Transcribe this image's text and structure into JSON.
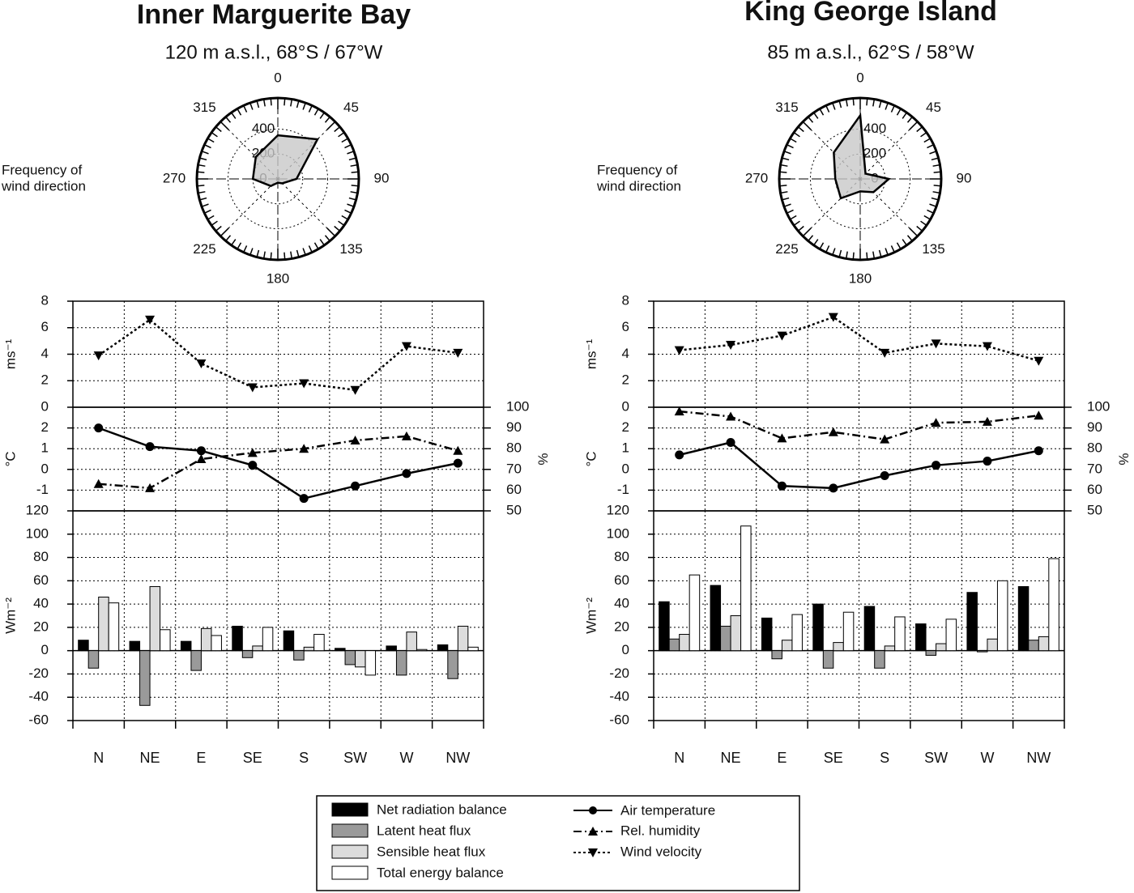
{
  "chart_data": [
    {
      "type": "radar",
      "title": "Inner Marguerite Bay",
      "subtitle": "120 m a.s.l., 68°S / 67°W",
      "label": [
        "Frequency of",
        "wind direction"
      ],
      "angles": [
        0,
        45,
        90,
        135,
        180,
        225,
        270,
        315
      ],
      "rlim": [
        0,
        650
      ],
      "rticks": [
        0,
        200,
        400
      ],
      "values": [
        350,
        450,
        150,
        50,
        30,
        80,
        200,
        250
      ],
      "color": "#c8c8c8"
    },
    {
      "type": "line",
      "ylabel": "ms⁻¹",
      "ylim": [
        0,
        8
      ],
      "yticks": [
        0,
        2,
        4,
        6,
        8
      ],
      "grid": true,
      "series": [
        {
          "name": "Wind velocity",
          "color": "#000000",
          "marker": "triangle-down",
          "line_style": "dotted",
          "values": [
            3.9,
            6.6,
            3.3,
            1.5,
            1.8,
            1.3,
            4.6,
            4.1
          ]
        }
      ]
    },
    {
      "type": "line",
      "ylabel": "°C",
      "y2label": "%",
      "ylim": [
        -2,
        3
      ],
      "yticks": [
        -1,
        0,
        1,
        2
      ],
      "y2lim": [
        50,
        100
      ],
      "y2ticks": [
        50,
        60,
        70,
        80,
        90,
        100
      ],
      "grid": true,
      "series": [
        {
          "name": "Air temperature",
          "color": "#000000",
          "marker": "circle",
          "line_style": "solid",
          "values": [
            2.0,
            1.1,
            0.9,
            0.2,
            -1.4,
            -0.8,
            -0.2,
            0.3
          ]
        },
        {
          "name": "Rel. humidity",
          "color": "#000000",
          "marker": "triangle-up",
          "line_style": "dashdot",
          "axis": "y2",
          "values": [
            63,
            61,
            75,
            78,
            80,
            84,
            86,
            79
          ]
        }
      ]
    },
    {
      "type": "bar",
      "ylabel": "Wm⁻²",
      "categories": [
        "N",
        "NE",
        "E",
        "SE",
        "S",
        "SW",
        "W",
        "NW"
      ],
      "ylim": [
        -60,
        120
      ],
      "yticks": [
        -60,
        -40,
        -20,
        0,
        20,
        40,
        60,
        80,
        100,
        120
      ],
      "grid": true,
      "series": [
        {
          "name": "Net radiation balance",
          "color": "#000000",
          "values": [
            9,
            8,
            8,
            21,
            17,
            2,
            4,
            5
          ]
        },
        {
          "name": "Latent heat flux",
          "color": "#9a9a9a",
          "values": [
            -15,
            -47,
            -17,
            -6,
            -8,
            -12,
            -21,
            -24
          ]
        },
        {
          "name": "Sensible heat flux",
          "color": "#dcdcdc",
          "values": [
            46,
            55,
            19,
            4,
            3,
            -14,
            16,
            21
          ]
        },
        {
          "name": "Total energy balance",
          "color": "#ffffff",
          "values": [
            41,
            18,
            13,
            20,
            14,
            -21,
            1,
            3
          ]
        }
      ]
    },
    {
      "type": "radar",
      "title": "King George Island",
      "subtitle": "85 m a.s.l., 62°S / 58°W",
      "label": [
        "Frequency of",
        "wind direction"
      ],
      "angles": [
        0,
        45,
        90,
        135,
        180,
        225,
        270,
        315
      ],
      "rlim": [
        0,
        650
      ],
      "rticks": [
        0,
        200,
        400
      ],
      "values": [
        510,
        60,
        230,
        150,
        100,
        220,
        200,
        300
      ],
      "color": "#c8c8c8"
    },
    {
      "type": "line",
      "ylabel": "ms⁻¹",
      "ylim": [
        0,
        8
      ],
      "yticks": [
        0,
        2,
        4,
        6,
        8
      ],
      "grid": true,
      "series": [
        {
          "name": "Wind velocity",
          "color": "#000000",
          "marker": "triangle-down",
          "line_style": "dotted",
          "values": [
            4.3,
            4.7,
            5.4,
            6.8,
            4.1,
            4.8,
            4.6,
            3.5
          ]
        }
      ]
    },
    {
      "type": "line",
      "ylabel": "°C",
      "y2label": "%",
      "ylim": [
        -2,
        3
      ],
      "yticks": [
        -1,
        0,
        1,
        2
      ],
      "y2lim": [
        50,
        100
      ],
      "y2ticks": [
        50,
        60,
        70,
        80,
        90,
        100
      ],
      "grid": true,
      "series": [
        {
          "name": "Air temperature",
          "color": "#000000",
          "marker": "circle",
          "line_style": "solid",
          "values": [
            0.7,
            1.3,
            -0.8,
            -0.9,
            -0.3,
            0.2,
            0.4,
            0.9
          ]
        },
        {
          "name": "Rel. humidity",
          "color": "#000000",
          "marker": "triangle-up",
          "line_style": "dashdot",
          "axis": "y2",
          "values": [
            98,
            95.5,
            85,
            88,
            84.5,
            92.5,
            93,
            96
          ]
        }
      ]
    },
    {
      "type": "bar",
      "ylabel": "Wm⁻²",
      "categories": [
        "N",
        "NE",
        "E",
        "SE",
        "S",
        "SW",
        "W",
        "NW"
      ],
      "ylim": [
        -60,
        120
      ],
      "yticks": [
        -60,
        -40,
        -20,
        0,
        20,
        40,
        60,
        80,
        100,
        120
      ],
      "grid": true,
      "series": [
        {
          "name": "Net radiation balance",
          "color": "#000000",
          "values": [
            42,
            56,
            28,
            40,
            38,
            23,
            50,
            55
          ]
        },
        {
          "name": "Latent heat flux",
          "color": "#9a9a9a",
          "values": [
            10,
            21,
            -7,
            -15,
            -15,
            -4,
            -1,
            9
          ]
        },
        {
          "name": "Sensible heat flux",
          "color": "#dcdcdc",
          "values": [
            14,
            30,
            9,
            7,
            4,
            6,
            10,
            12
          ]
        },
        {
          "name": "Total energy balance",
          "color": "#ffffff",
          "values": [
            65,
            107,
            31,
            33,
            29,
            27,
            60,
            79
          ]
        }
      ]
    }
  ]
}
